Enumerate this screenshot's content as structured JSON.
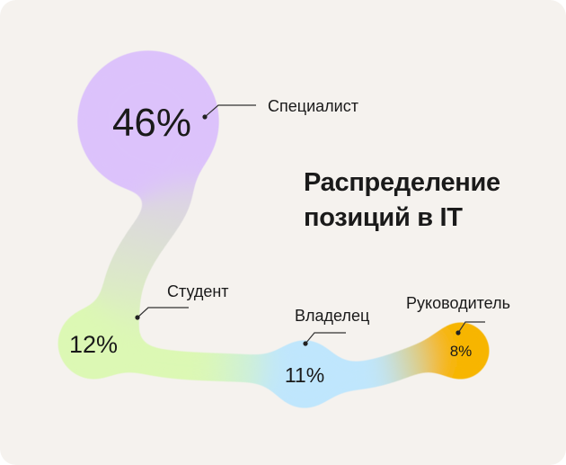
{
  "chart_data": {
    "type": "bubble",
    "title_lines": [
      "Распределение",
      "позиций в IT"
    ],
    "categories": [
      "Специалист",
      "Студент",
      "Владелец",
      "Руководитель"
    ],
    "values": [
      46,
      12,
      11,
      8
    ],
    "value_labels": [
      "46%",
      "12%",
      "11%",
      "8%"
    ],
    "colors": [
      "#dcc2fb",
      "#dcf8b4",
      "#bfe6fd",
      "#f7b506"
    ]
  }
}
